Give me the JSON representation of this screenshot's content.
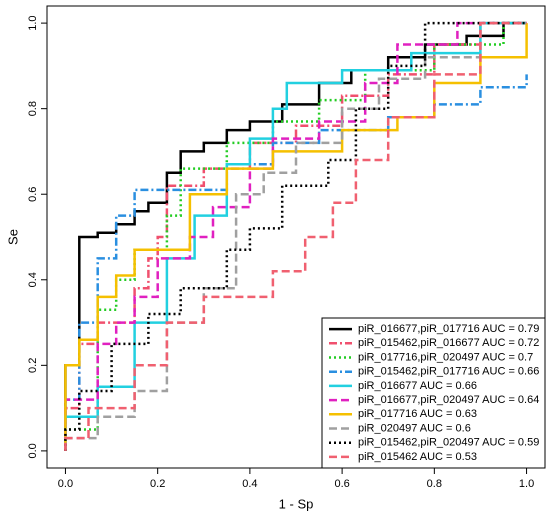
{
  "chart_data": {
    "type": "line",
    "x_label": "1 - Sp",
    "y_label": "Se",
    "xlim": [
      -0.04,
      1.04
    ],
    "ylim": [
      -0.04,
      1.04
    ],
    "xticks": [
      {
        "value": 0,
        "label": "0.0"
      },
      0.2,
      0.4,
      0.6,
      0.8,
      {
        "value": 1,
        "label": "1.0"
      }
    ],
    "yticks": [
      {
        "value": 0,
        "label": "0.0"
      },
      0.2,
      0.4,
      0.6,
      0.8,
      {
        "value": 1,
        "label": "1.0"
      }
    ],
    "legend": "bottom-right",
    "series": [
      {
        "name": "piR_016677,piR_017716 AUC =  0.79",
        "color": "#000000",
        "dash": "solid",
        "x": [
          0,
          0,
          0.03,
          0.03,
          0.07,
          0.07,
          0.11,
          0.11,
          0.15,
          0.15,
          0.18,
          0.18,
          0.22,
          0.22,
          0.25,
          0.25,
          0.3,
          0.3,
          0.35,
          0.35,
          0.4,
          0.4,
          0.47,
          0.47,
          0.55,
          0.55,
          0.62,
          0.62,
          0.7,
          0.7,
          0.78,
          0.78,
          0.87,
          0.87,
          0.95,
          0.95,
          1
        ],
        "values": [
          0,
          0.2,
          0.2,
          0.5,
          0.5,
          0.51,
          0.51,
          0.53,
          0.53,
          0.56,
          0.56,
          0.58,
          0.58,
          0.65,
          0.65,
          0.7,
          0.7,
          0.72,
          0.72,
          0.75,
          0.75,
          0.77,
          0.77,
          0.81,
          0.81,
          0.86,
          0.86,
          0.89,
          0.89,
          0.92,
          0.92,
          0.95,
          0.95,
          0.97,
          0.97,
          1,
          1
        ]
      },
      {
        "name": "piR_015462,piR_016677 AUC =  0.72",
        "color": "#f0506e",
        "dash": "dashdot",
        "x": [
          0,
          0,
          0.03,
          0.03,
          0.07,
          0.07,
          0.15,
          0.15,
          0.18,
          0.18,
          0.2,
          0.2,
          0.22,
          0.22,
          0.3,
          0.3,
          0.4,
          0.4,
          0.5,
          0.5,
          0.6,
          0.6,
          0.7,
          0.7,
          0.8,
          0.8,
          0.9,
          0.9,
          1
        ],
        "values": [
          0,
          0.1,
          0.1,
          0.25,
          0.25,
          0.3,
          0.3,
          0.38,
          0.38,
          0.45,
          0.45,
          0.5,
          0.5,
          0.62,
          0.62,
          0.66,
          0.66,
          0.72,
          0.72,
          0.76,
          0.76,
          0.83,
          0.83,
          0.88,
          0.88,
          0.95,
          0.95,
          1,
          1
        ]
      },
      {
        "name": "piR_017716,piR_020497 AUC =  0.7",
        "color": "#22cc22",
        "dash": "dotted",
        "x": [
          0,
          0,
          0.07,
          0.07,
          0.11,
          0.11,
          0.15,
          0.15,
          0.22,
          0.22,
          0.25,
          0.25,
          0.35,
          0.35,
          0.45,
          0.45,
          0.55,
          0.55,
          0.65,
          0.65,
          0.8,
          0.8,
          0.95,
          0.95,
          1
        ],
        "values": [
          0,
          0.05,
          0.05,
          0.33,
          0.33,
          0.4,
          0.4,
          0.47,
          0.47,
          0.55,
          0.55,
          0.66,
          0.66,
          0.72,
          0.72,
          0.77,
          0.77,
          0.82,
          0.82,
          0.89,
          0.89,
          0.95,
          0.95,
          1,
          1
        ]
      },
      {
        "name": "piR_015462,piR_017716 AUC =  0.66",
        "color": "#2a8fe0",
        "dash": "dashdot",
        "x": [
          0,
          0,
          0.03,
          0.03,
          0.07,
          0.07,
          0.11,
          0.11,
          0.15,
          0.15,
          0.35,
          0.35,
          0.45,
          0.45,
          0.55,
          0.55,
          0.7,
          0.7,
          0.8,
          0.8,
          0.9,
          0.9,
          1,
          1
        ],
        "values": [
          0,
          0.12,
          0.12,
          0.3,
          0.3,
          0.45,
          0.45,
          0.55,
          0.55,
          0.61,
          0.61,
          0.67,
          0.67,
          0.72,
          0.72,
          0.75,
          0.75,
          0.78,
          0.78,
          0.81,
          0.81,
          0.85,
          0.85,
          0.88
        ]
      },
      {
        "name": "piR_016677 AUC =  0.66",
        "color": "#22d0e0",
        "dash": "solid",
        "x": [
          0,
          0,
          0.07,
          0.07,
          0.15,
          0.15,
          0.22,
          0.22,
          0.28,
          0.28,
          0.35,
          0.35,
          0.4,
          0.4,
          0.45,
          0.45,
          0.48,
          0.48,
          0.6,
          0.6,
          0.75,
          0.75,
          0.9,
          0.9,
          1
        ],
        "values": [
          0,
          0.08,
          0.08,
          0.15,
          0.15,
          0.3,
          0.3,
          0.45,
          0.45,
          0.55,
          0.55,
          0.67,
          0.67,
          0.73,
          0.73,
          0.8,
          0.8,
          0.86,
          0.86,
          0.89,
          0.89,
          0.93,
          0.93,
          1,
          1
        ]
      },
      {
        "name": "piR_016677,piR_020497 AUC =  0.64",
        "color": "#e020c0",
        "dash": "dashed",
        "x": [
          0,
          0,
          0.07,
          0.07,
          0.11,
          0.11,
          0.15,
          0.15,
          0.2,
          0.2,
          0.27,
          0.27,
          0.32,
          0.32,
          0.4,
          0.4,
          0.45,
          0.45,
          0.55,
          0.55,
          0.65,
          0.65,
          0.72,
          0.72,
          0.85,
          0.85,
          1
        ],
        "values": [
          0,
          0.12,
          0.12,
          0.25,
          0.25,
          0.3,
          0.3,
          0.36,
          0.36,
          0.45,
          0.45,
          0.5,
          0.5,
          0.57,
          0.57,
          0.66,
          0.66,
          0.73,
          0.73,
          0.77,
          0.77,
          0.86,
          0.86,
          0.95,
          0.95,
          1,
          1
        ]
      },
      {
        "name": "piR_017716 AUC =  0.63",
        "color": "#f5c000",
        "dash": "solid",
        "x": [
          0,
          0,
          0.03,
          0.03,
          0.07,
          0.07,
          0.11,
          0.11,
          0.15,
          0.15,
          0.27,
          0.27,
          0.35,
          0.35,
          0.45,
          0.45,
          0.6,
          0.6,
          0.72,
          0.72,
          0.8,
          0.8,
          0.9,
          0.9,
          1,
          1
        ],
        "values": [
          0,
          0.2,
          0.2,
          0.26,
          0.26,
          0.36,
          0.36,
          0.41,
          0.41,
          0.47,
          0.47,
          0.6,
          0.6,
          0.66,
          0.66,
          0.7,
          0.7,
          0.75,
          0.75,
          0.78,
          0.78,
          0.86,
          0.86,
          0.92,
          0.92,
          1
        ]
      },
      {
        "name": "piR_020497 AUC =  0.6",
        "color": "#a0a0a0",
        "dash": "dashed",
        "x": [
          0,
          0,
          0.07,
          0.07,
          0.15,
          0.15,
          0.22,
          0.22,
          0.3,
          0.3,
          0.37,
          0.37,
          0.43,
          0.43,
          0.5,
          0.5,
          0.6,
          0.6,
          0.68,
          0.68,
          0.78,
          0.78,
          0.9,
          0.9,
          1
        ],
        "values": [
          0,
          0.03,
          0.03,
          0.08,
          0.08,
          0.14,
          0.14,
          0.3,
          0.3,
          0.38,
          0.38,
          0.6,
          0.6,
          0.65,
          0.65,
          0.72,
          0.72,
          0.8,
          0.8,
          0.87,
          0.87,
          0.92,
          0.92,
          1,
          1
        ]
      },
      {
        "name": "piR_015462,piR_020497 AUC =  0.59",
        "color": "#000000",
        "dash": "dotted",
        "x": [
          0,
          0,
          0.03,
          0.03,
          0.1,
          0.1,
          0.18,
          0.18,
          0.25,
          0.25,
          0.35,
          0.35,
          0.4,
          0.4,
          0.47,
          0.47,
          0.57,
          0.57,
          0.63,
          0.63,
          0.7,
          0.7,
          0.78,
          0.78,
          1
        ],
        "values": [
          0,
          0.05,
          0.05,
          0.14,
          0.14,
          0.25,
          0.25,
          0.32,
          0.32,
          0.38,
          0.38,
          0.47,
          0.47,
          0.52,
          0.52,
          0.62,
          0.62,
          0.68,
          0.68,
          0.8,
          0.8,
          0.9,
          0.9,
          1,
          1
        ]
      },
      {
        "name": "piR_015462 AUC =  0.53",
        "color": "#f06070",
        "dash": "dashed",
        "x": [
          0,
          0,
          0.05,
          0.05,
          0.15,
          0.15,
          0.22,
          0.22,
          0.3,
          0.3,
          0.45,
          0.45,
          0.52,
          0.52,
          0.58,
          0.58,
          0.63,
          0.63,
          0.7,
          0.7,
          0.8,
          0.8,
          0.9,
          0.9,
          1
        ],
        "values": [
          0,
          0.03,
          0.03,
          0.1,
          0.1,
          0.2,
          0.2,
          0.3,
          0.3,
          0.36,
          0.36,
          0.42,
          0.42,
          0.5,
          0.5,
          0.58,
          0.58,
          0.68,
          0.68,
          0.78,
          0.78,
          0.88,
          0.88,
          1,
          1
        ]
      }
    ]
  }
}
